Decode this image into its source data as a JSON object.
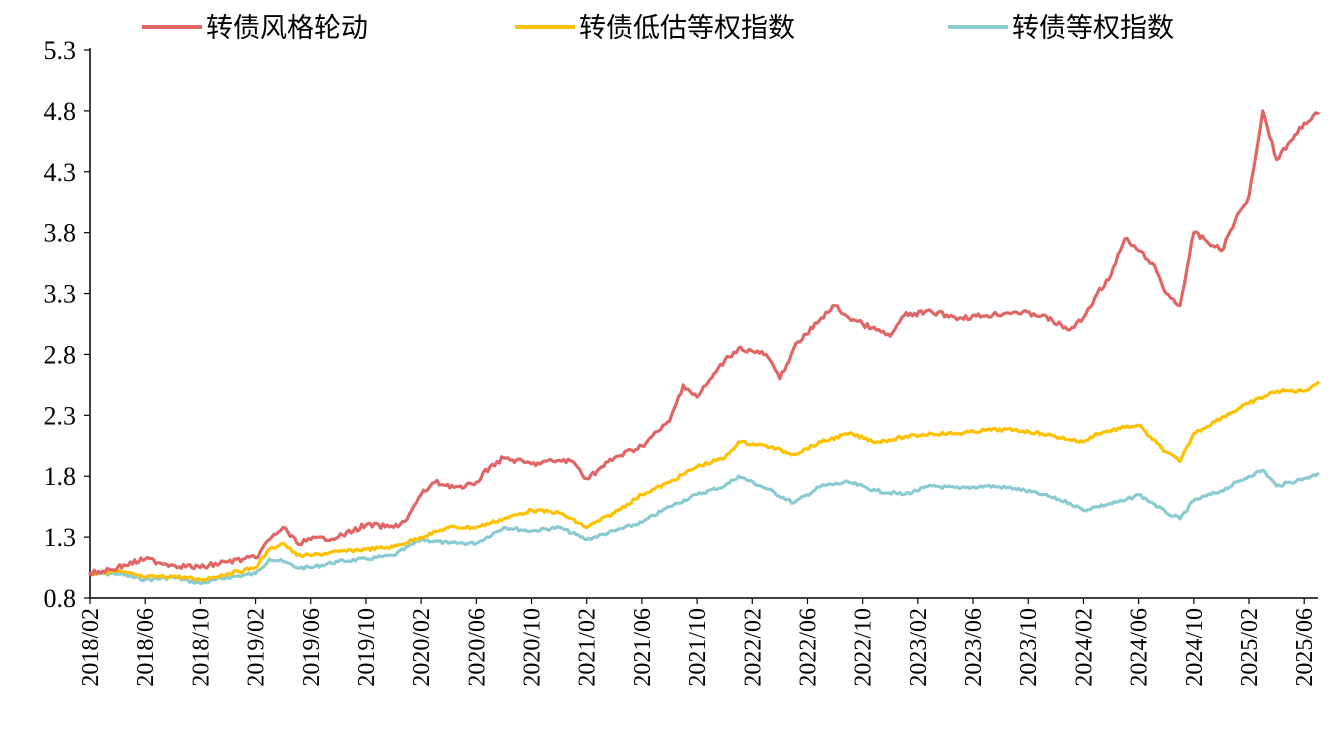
{
  "chart_data": {
    "type": "line",
    "title": "",
    "xlabel": "",
    "ylabel": "",
    "ylim": [
      0.8,
      5.3
    ],
    "y_ticks": [
      "0.8",
      "1.3",
      "1.8",
      "2.3",
      "2.8",
      "3.3",
      "3.8",
      "4.3",
      "4.8",
      "5.3"
    ],
    "x_ticks": [
      "2018/02",
      "2018/06",
      "2018/10",
      "2019/02",
      "2019/06",
      "2019/10",
      "2020/02",
      "2020/06",
      "2020/10",
      "2021/02",
      "2021/06",
      "2021/10",
      "2022/02",
      "2022/06",
      "2022/10",
      "2023/02",
      "2023/06",
      "2023/10",
      "2024/02",
      "2024/06",
      "2024/10",
      "2025/02",
      "2025/06"
    ],
    "x_range": [
      "2018/02",
      "2025/07"
    ],
    "grid": false,
    "legend": {
      "position": "top"
    },
    "series": [
      {
        "name": "转债风格轮动",
        "color": "#E06666",
        "x": [
          "2018/02",
          "2018/04",
          "2018/06",
          "2018/08",
          "2018/10",
          "2018/12",
          "2019/02",
          "2019/03",
          "2019/04",
          "2019/05",
          "2019/06",
          "2019/08",
          "2019/10",
          "2019/12",
          "2020/01",
          "2020/02",
          "2020/03",
          "2020/05",
          "2020/06",
          "2020/07",
          "2020/08",
          "2020/10",
          "2020/12",
          "2021/01",
          "2021/02",
          "2021/04",
          "2021/06",
          "2021/08",
          "2021/09",
          "2021/10",
          "2021/12",
          "2022/01",
          "2022/03",
          "2022/04",
          "2022/05",
          "2022/07",
          "2022/08",
          "2022/09",
          "2022/10",
          "2022/11",
          "2022/12",
          "2023/01",
          "2023/03",
          "2023/05",
          "2023/07",
          "2023/09",
          "2023/11",
          "2024/01",
          "2024/02",
          "2024/03",
          "2024/04",
          "2024/05",
          "2024/06",
          "2024/07",
          "2024/08",
          "2024/09",
          "2024/10",
          "2024/12",
          "2025/01",
          "2025/02",
          "2025/03",
          "2025/04",
          "2025/05",
          "2025/06",
          "2025/07"
        ],
        "values": [
          1.0,
          1.05,
          1.12,
          1.07,
          1.05,
          1.1,
          1.13,
          1.28,
          1.38,
          1.25,
          1.28,
          1.3,
          1.4,
          1.38,
          1.45,
          1.65,
          1.75,
          1.7,
          1.75,
          1.88,
          1.95,
          1.9,
          1.93,
          1.92,
          1.78,
          1.95,
          2.05,
          2.25,
          2.55,
          2.45,
          2.75,
          2.85,
          2.8,
          2.6,
          2.85,
          3.1,
          3.2,
          3.1,
          3.05,
          3.0,
          2.95,
          3.12,
          3.15,
          3.1,
          3.12,
          3.15,
          3.12,
          3.0,
          3.1,
          3.3,
          3.45,
          3.75,
          3.65,
          3.55,
          3.3,
          3.2,
          3.8,
          3.65,
          3.9,
          4.1,
          4.8,
          4.4,
          4.55,
          4.7,
          4.78
        ]
      },
      {
        "name": "转债低估等权指数",
        "color": "#FFC000",
        "x": [
          "2018/02",
          "2018/04",
          "2018/06",
          "2018/08",
          "2018/10",
          "2018/12",
          "2019/02",
          "2019/03",
          "2019/04",
          "2019/05",
          "2019/06",
          "2019/08",
          "2019/10",
          "2019/12",
          "2020/02",
          "2020/04",
          "2020/06",
          "2020/08",
          "2020/10",
          "2020/12",
          "2021/02",
          "2021/04",
          "2021/06",
          "2021/08",
          "2021/10",
          "2021/12",
          "2022/01",
          "2022/03",
          "2022/05",
          "2022/07",
          "2022/09",
          "2022/11",
          "2023/01",
          "2023/03",
          "2023/05",
          "2023/07",
          "2023/09",
          "2023/11",
          "2024/01",
          "2024/02",
          "2024/03",
          "2024/05",
          "2024/06",
          "2024/07",
          "2024/08",
          "2024/09",
          "2024/10",
          "2024/12",
          "2025/02",
          "2025/04",
          "2025/06",
          "2025/07"
        ],
        "values": [
          1.0,
          1.02,
          0.97,
          0.98,
          0.95,
          1.0,
          1.05,
          1.2,
          1.25,
          1.15,
          1.15,
          1.18,
          1.2,
          1.22,
          1.3,
          1.38,
          1.38,
          1.45,
          1.52,
          1.5,
          1.38,
          1.5,
          1.65,
          1.75,
          1.88,
          1.95,
          2.08,
          2.05,
          1.98,
          2.08,
          2.15,
          2.08,
          2.12,
          2.15,
          2.15,
          2.18,
          2.18,
          2.15,
          2.1,
          2.08,
          2.15,
          2.2,
          2.22,
          2.1,
          2.0,
          1.92,
          2.15,
          2.28,
          2.4,
          2.5,
          2.5,
          2.57
        ]
      },
      {
        "name": "转债等权指数",
        "color": "#8ACBD0",
        "x": [
          "2018/02",
          "2018/04",
          "2018/06",
          "2018/08",
          "2018/10",
          "2018/12",
          "2019/02",
          "2019/03",
          "2019/04",
          "2019/05",
          "2019/06",
          "2019/08",
          "2019/10",
          "2019/12",
          "2020/02",
          "2020/04",
          "2020/06",
          "2020/08",
          "2020/10",
          "2020/12",
          "2021/02",
          "2021/04",
          "2021/06",
          "2021/08",
          "2021/10",
          "2021/12",
          "2022/01",
          "2022/03",
          "2022/05",
          "2022/07",
          "2022/09",
          "2022/11",
          "2023/01",
          "2023/03",
          "2023/05",
          "2023/07",
          "2023/09",
          "2023/11",
          "2024/01",
          "2024/02",
          "2024/03",
          "2024/05",
          "2024/06",
          "2024/07",
          "2024/08",
          "2024/09",
          "2024/10",
          "2024/12",
          "2025/02",
          "2025/03",
          "2025/04",
          "2025/06",
          "2025/07"
        ],
        "values": [
          1.0,
          1.0,
          0.95,
          0.97,
          0.92,
          0.97,
          1.0,
          1.12,
          1.1,
          1.05,
          1.05,
          1.1,
          1.12,
          1.15,
          1.28,
          1.25,
          1.25,
          1.38,
          1.35,
          1.38,
          1.28,
          1.35,
          1.42,
          1.55,
          1.65,
          1.72,
          1.8,
          1.7,
          1.58,
          1.72,
          1.75,
          1.68,
          1.65,
          1.72,
          1.7,
          1.72,
          1.7,
          1.65,
          1.58,
          1.52,
          1.55,
          1.6,
          1.65,
          1.58,
          1.5,
          1.45,
          1.6,
          1.68,
          1.8,
          1.85,
          1.72,
          1.78,
          1.82
        ]
      }
    ]
  }
}
